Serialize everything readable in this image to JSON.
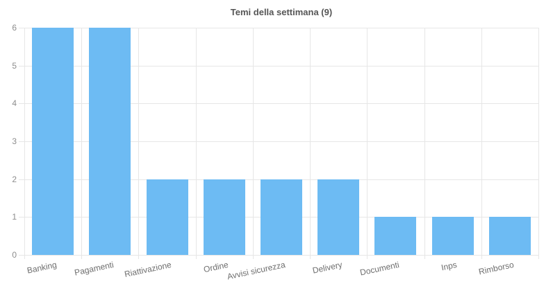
{
  "chart_data": {
    "type": "bar",
    "title": "Temi della settimana (9)",
    "categories": [
      "Banking",
      "Pagamenti",
      "Riattivazione",
      "Ordine",
      "Avvisi sicurezza",
      "Delivery",
      "Documenti",
      "Inps",
      "Rimborso"
    ],
    "values": [
      6,
      6,
      2,
      2,
      2,
      2,
      1,
      1,
      1
    ],
    "xlabel": "",
    "ylabel": "",
    "ylim": [
      0,
      6
    ],
    "ytick_step": 1,
    "yticks": [
      "0",
      "1",
      "2",
      "3",
      "4",
      "5",
      "6"
    ],
    "grid": "on",
    "legend": "none"
  },
  "colors": {
    "bar_fill": "#6DBBF3",
    "gridline": "#e6e6e6",
    "axis_line": "#e6e6e6",
    "title_text": "#555555",
    "y_tick_text": "#8c8c8c",
    "x_tick_text": "#6e6e6e",
    "background": "#ffffff"
  }
}
